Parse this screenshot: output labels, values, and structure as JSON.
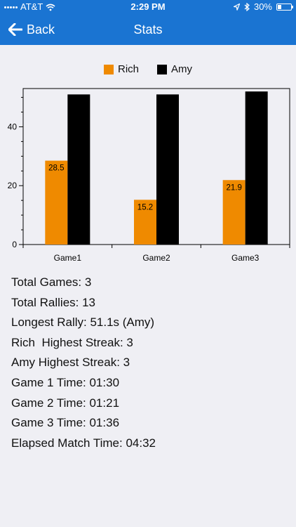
{
  "status_bar": {
    "carrier": "AT&T",
    "time": "2:29 PM",
    "battery": "30%",
    "battery_level": 0.3
  },
  "nav": {
    "back_label": "Back",
    "title": "Stats"
  },
  "colors": {
    "nav_bg": "#1a74d2",
    "rich": "#ef8a00",
    "amy": "#000000"
  },
  "chart_data": {
    "type": "bar",
    "categories": [
      "Game1",
      "Game2",
      "Game3"
    ],
    "series": [
      {
        "name": "Rich",
        "values": [
          28.5,
          15.2,
          21.9
        ],
        "color": "#ef8a00",
        "labels": [
          "28.5",
          "15.2",
          "21.9"
        ]
      },
      {
        "name": "Amy",
        "values": [
          51.0,
          51.0,
          52.0
        ],
        "color": "#000000"
      }
    ],
    "ylim": [
      0,
      53
    ],
    "yticks": [
      0,
      20,
      40
    ],
    "legend": "top-center"
  },
  "stats": [
    "Total Games: 3",
    "Total Rallies: 13",
    "Longest Rally: 51.1s (Amy)",
    "Rich  Highest Streak: 3",
    "Amy Highest Streak: 3",
    "Game 1 Time: 01:30",
    "Game 2 Time: 01:21",
    "Game 3 Time: 01:36",
    "Elapsed Match Time: 04:32"
  ]
}
